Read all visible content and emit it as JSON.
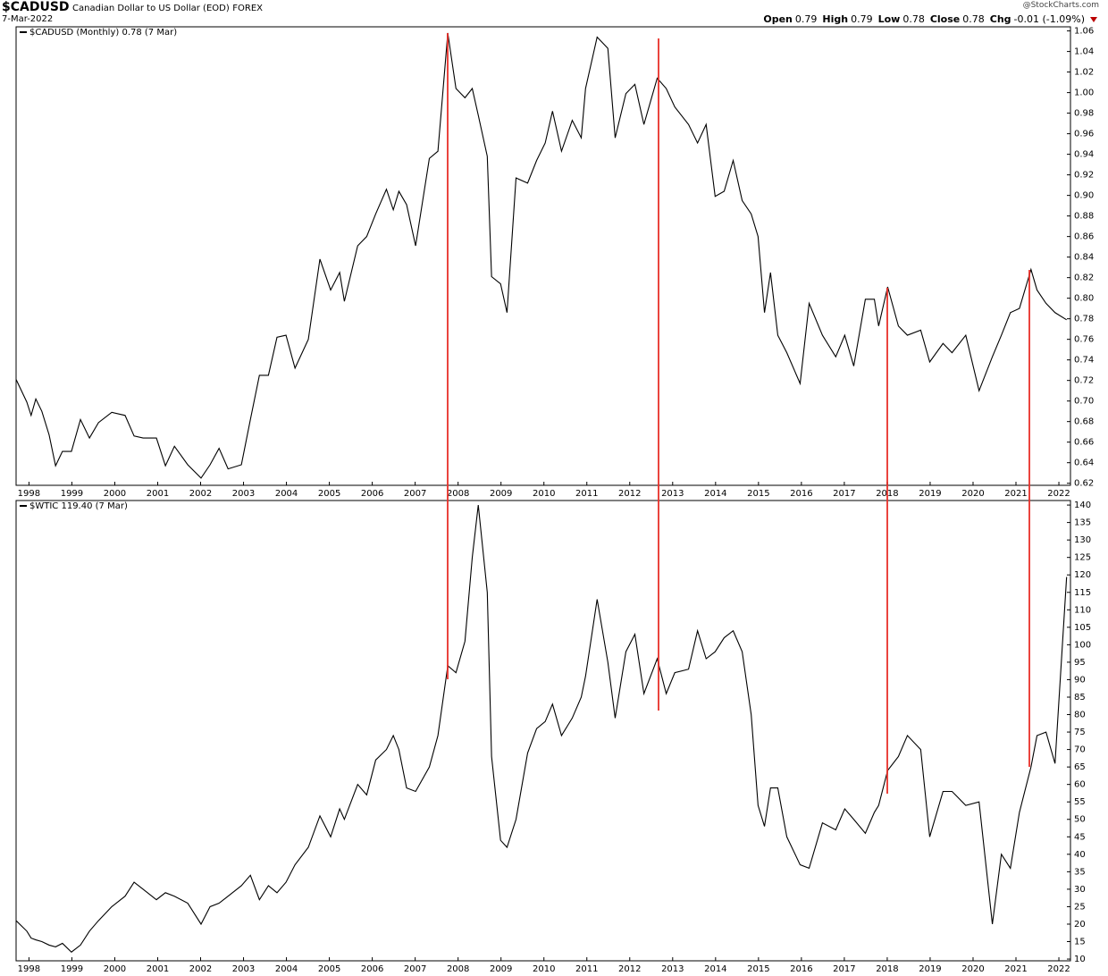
{
  "header": {
    "symbol": "$CADUSD",
    "name": "Canadian Dollar to US Dollar (EOD)",
    "exchange": "FOREX",
    "date": "7-Mar-2022",
    "credit": "@StockCharts.com",
    "quote": [
      {
        "label": "Open",
        "value": "0.79"
      },
      {
        "label": "High",
        "value": "0.79"
      },
      {
        "label": "Low",
        "value": "0.78"
      },
      {
        "label": "Close",
        "value": "0.78"
      },
      {
        "label": "Chg",
        "value": "-0.01 (-1.09%)"
      }
    ]
  },
  "chart_data": [
    {
      "type": "line",
      "title": "$CADUSD (Monthly) 0.78 (7 Mar)",
      "color": "#000000",
      "x": [
        1997.7,
        1997.95,
        1998.05,
        1998.16,
        1998.3,
        1998.47,
        1998.62,
        1998.78,
        1998.99,
        1999.2,
        1999.41,
        1999.62,
        1999.93,
        2000.24,
        2000.45,
        2000.66,
        2000.97,
        2001.18,
        2001.39,
        2001.7,
        2002.01,
        2002.22,
        2002.43,
        2002.64,
        2002.95,
        2003.16,
        2003.37,
        2003.58,
        2003.78,
        2003.99,
        2004.2,
        2004.51,
        2004.78,
        2005.03,
        2005.24,
        2005.35,
        2005.66,
        2005.87,
        2006.08,
        2006.33,
        2006.49,
        2006.62,
        2006.8,
        2007.01,
        2007.33,
        2007.53,
        2007.76,
        2007.95,
        2008.16,
        2008.33,
        2008.47,
        2008.68,
        2008.78,
        2008.99,
        2009.14,
        2009.35,
        2009.62,
        2009.83,
        2010.03,
        2010.2,
        2010.41,
        2010.66,
        2010.87,
        2010.97,
        2011.24,
        2011.49,
        2011.66,
        2011.91,
        2012.12,
        2012.33,
        2012.64,
        2012.85,
        2013.05,
        2013.37,
        2013.58,
        2013.78,
        2013.99,
        2014.2,
        2014.41,
        2014.62,
        2014.83,
        2014.99,
        2015.14,
        2015.28,
        2015.45,
        2015.66,
        2015.97,
        2016.18,
        2016.49,
        2016.8,
        2017.01,
        2017.22,
        2017.49,
        2017.7,
        2017.8,
        2018.01,
        2018.26,
        2018.47,
        2018.78,
        2018.99,
        2019.3,
        2019.51,
        2019.83,
        2020.14,
        2020.45,
        2020.66,
        2020.87,
        2021.08,
        2021.35,
        2021.49,
        2021.7,
        2021.91,
        2022.18
      ],
      "values": [
        0.721,
        0.699,
        0.686,
        0.702,
        0.69,
        0.667,
        0.637,
        0.651,
        0.651,
        0.682,
        0.664,
        0.679,
        0.689,
        0.686,
        0.666,
        0.664,
        0.664,
        0.637,
        0.656,
        0.638,
        0.625,
        0.638,
        0.654,
        0.634,
        0.638,
        0.682,
        0.725,
        0.725,
        0.762,
        0.764,
        0.732,
        0.76,
        0.838,
        0.808,
        0.825,
        0.797,
        0.851,
        0.86,
        0.882,
        0.906,
        0.886,
        0.904,
        0.891,
        0.851,
        0.936,
        0.943,
        1.058,
        1.004,
        0.995,
        1.004,
        0.978,
        0.938,
        0.821,
        0.814,
        0.786,
        0.917,
        0.912,
        0.934,
        0.951,
        0.982,
        0.943,
        0.973,
        0.956,
        1.004,
        1.054,
        1.043,
        0.956,
        0.999,
        1.008,
        0.969,
        1.014,
        1.004,
        0.986,
        0.969,
        0.951,
        0.969,
        0.899,
        0.904,
        0.934,
        0.895,
        0.882,
        0.86,
        0.786,
        0.825,
        0.764,
        0.747,
        0.717,
        0.795,
        0.764,
        0.743,
        0.764,
        0.734,
        0.799,
        0.799,
        0.773,
        0.811,
        0.773,
        0.764,
        0.769,
        0.738,
        0.756,
        0.747,
        0.764,
        0.71,
        0.743,
        0.764,
        0.786,
        0.79,
        0.828,
        0.808,
        0.795,
        0.786,
        0.779
      ],
      "xlim": [
        1997.7,
        2022.27
      ],
      "xticks": [
        1998,
        1999,
        2000,
        2001,
        2002,
        2003,
        2004,
        2005,
        2006,
        2007,
        2008,
        2009,
        2010,
        2011,
        2012,
        2013,
        2014,
        2015,
        2016,
        2017,
        2018,
        2019,
        2020,
        2021,
        2022
      ],
      "ylim": [
        0.618,
        1.064
      ],
      "yticks": [
        0.62,
        0.64,
        0.66,
        0.68,
        {
          "value": 0.7,
          "label": "0.70"
        },
        0.72,
        0.74,
        0.76,
        0.78,
        {
          "value": 0.8,
          "label": "0.80"
        },
        0.82,
        0.84,
        0.86,
        0.88,
        {
          "value": 0.9,
          "label": "0.90"
        },
        0.92,
        0.94,
        0.96,
        0.98,
        {
          "value": 1,
          "label": "1.00"
        },
        1.02,
        1.04,
        1.06
      ],
      "grid": false
    },
    {
      "type": "line",
      "title": "$WTIC 119.40 (7 Mar)",
      "color": "#000000",
      "x": [
        1997.7,
        1997.95,
        1998.05,
        1998.16,
        1998.3,
        1998.47,
        1998.62,
        1998.78,
        1998.99,
        1999.2,
        1999.41,
        1999.62,
        1999.93,
        2000.24,
        2000.45,
        2000.66,
        2000.97,
        2001.18,
        2001.39,
        2001.7,
        2002.01,
        2002.22,
        2002.43,
        2002.64,
        2002.95,
        2003.16,
        2003.37,
        2003.58,
        2003.78,
        2003.99,
        2004.2,
        2004.51,
        2004.78,
        2005.03,
        2005.24,
        2005.35,
        2005.66,
        2005.87,
        2006.08,
        2006.33,
        2006.49,
        2006.62,
        2006.8,
        2007.01,
        2007.33,
        2007.53,
        2007.76,
        2007.95,
        2008.16,
        2008.33,
        2008.47,
        2008.68,
        2008.78,
        2008.99,
        2009.14,
        2009.35,
        2009.62,
        2009.83,
        2010.03,
        2010.2,
        2010.41,
        2010.66,
        2010.87,
        2010.97,
        2011.24,
        2011.49,
        2011.66,
        2011.91,
        2012.12,
        2012.33,
        2012.64,
        2012.85,
        2013.05,
        2013.37,
        2013.58,
        2013.78,
        2013.99,
        2014.2,
        2014.41,
        2014.62,
        2014.83,
        2014.99,
        2015.14,
        2015.28,
        2015.45,
        2015.66,
        2015.97,
        2016.18,
        2016.49,
        2016.8,
        2017.01,
        2017.22,
        2017.49,
        2017.7,
        2017.8,
        2018.01,
        2018.26,
        2018.47,
        2018.78,
        2018.99,
        2019.3,
        2019.51,
        2019.83,
        2020.14,
        2020.45,
        2020.66,
        2020.87,
        2021.08,
        2021.35,
        2021.49,
        2021.7,
        2021.91,
        2022.18
      ],
      "values": [
        21,
        18,
        16,
        15.5,
        15,
        14,
        13.5,
        14.5,
        12,
        14,
        18,
        21,
        25,
        28,
        32,
        30,
        27,
        29,
        28,
        26,
        20,
        25,
        26,
        28,
        31,
        34,
        27,
        31,
        29,
        32,
        37,
        42,
        51,
        45,
        53,
        50,
        60,
        57,
        67,
        70,
        74,
        70,
        59,
        58,
        65,
        74,
        94,
        92,
        101,
        125,
        140,
        115,
        68,
        44,
        42,
        50,
        69,
        76,
        78,
        83,
        74,
        79,
        85,
        91,
        113,
        95,
        79,
        98,
        103,
        86,
        96,
        86,
        92,
        93,
        104,
        96,
        98,
        102,
        104,
        98,
        80,
        54,
        48,
        59,
        59,
        45,
        37,
        36,
        49,
        47,
        53,
        50,
        46,
        52,
        54,
        64,
        68,
        74,
        70,
        45,
        58,
        58,
        54,
        55,
        20,
        40,
        36,
        52,
        65,
        74,
        75,
        66,
        119.4
      ],
      "xlim": [
        1997.7,
        2022.27
      ],
      "xticks": [
        1998,
        1999,
        2000,
        2001,
        2002,
        2003,
        2004,
        2005,
        2006,
        2007,
        2008,
        2009,
        2010,
        2011,
        2012,
        2013,
        2014,
        2015,
        2016,
        2017,
        2018,
        2019,
        2020,
        2021,
        2022
      ],
      "ylim": [
        9.5,
        141.3
      ],
      "yticks": [
        10,
        15,
        20,
        25,
        30,
        35,
        40,
        45,
        50,
        55,
        60,
        65,
        70,
        75,
        80,
        85,
        90,
        95,
        100,
        105,
        110,
        115,
        120,
        125,
        130,
        135,
        140
      ],
      "grid": false
    }
  ]
}
